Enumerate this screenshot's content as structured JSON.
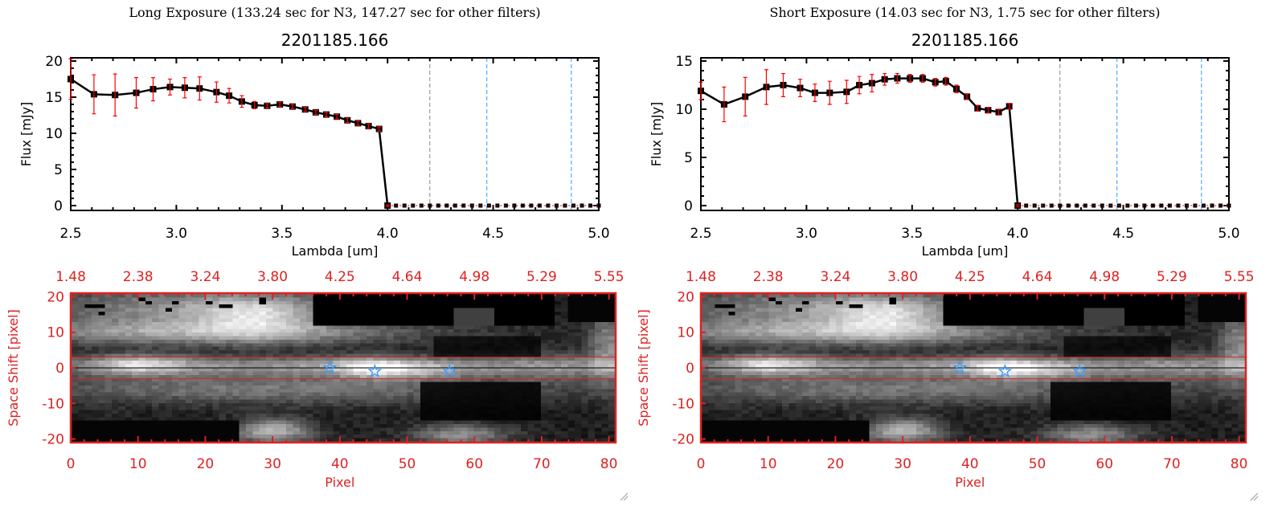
{
  "panels": [
    {
      "title": "Long Exposure (133.24 sec for N3, 147.27 sec for other filters)",
      "object_id": "2201185.166"
    },
    {
      "title": "Short Exposure (14.03 sec for N3, 1.75 sec for other filters)",
      "object_id": "2201185.166"
    }
  ],
  "chart_data": [
    {
      "type": "line",
      "title": "2201185.166",
      "xlabel": "Lambda [um]",
      "ylabel": "Flux [mJy]",
      "xlim": [
        2.5,
        5.0
      ],
      "ylim": [
        -0.67,
        20.44
      ],
      "xticks": [
        "2.5",
        "3.0",
        "3.5",
        "4.0",
        "4.5",
        "5.0"
      ],
      "yticks": [
        "0",
        "5",
        "10",
        "15",
        "20"
      ],
      "ytick_values": [
        0,
        5,
        10,
        15,
        20
      ],
      "x": [
        2.5,
        2.61,
        2.71,
        2.81,
        2.89,
        2.97,
        3.04,
        3.11,
        3.19,
        3.25,
        3.31,
        3.37,
        3.43,
        3.49,
        3.55,
        3.61,
        3.66,
        3.71,
        3.76,
        3.81,
        3.86,
        3.91,
        3.96,
        4.0
      ],
      "y": [
        17.5,
        15.4,
        15.3,
        15.6,
        16.1,
        16.4,
        16.3,
        16.2,
        15.7,
        15.2,
        14.4,
        13.9,
        13.8,
        14.0,
        13.7,
        13.3,
        12.9,
        12.6,
        12.3,
        11.8,
        11.4,
        11.0,
        10.6,
        0
      ],
      "yerr": [
        2.8,
        2.7,
        2.9,
        2.1,
        1.6,
        1.1,
        1.4,
        1.6,
        1.4,
        1.0,
        0.8,
        0.5,
        0.3,
        0.3,
        0.3,
        0.3,
        0.3,
        0.3,
        0.3,
        0.3,
        0.3,
        0.3,
        0.3,
        0.1
      ],
      "vlines": [
        {
          "x": 4.2,
          "color": "#888888"
        },
        {
          "x": 4.47,
          "color": "#3399ff"
        },
        {
          "x": 4.87,
          "color": "#3399ff"
        }
      ]
    },
    {
      "type": "line",
      "title": "2201185.166",
      "xlabel": "Lambda [um]",
      "ylabel": "Flux [mJy]",
      "xlim": [
        2.5,
        5.0
      ],
      "ylim": [
        -0.5,
        15.33
      ],
      "xticks": [
        "2.5",
        "3.0",
        "3.5",
        "4.0",
        "4.5",
        "5.0"
      ],
      "yticks": [
        "0",
        "5",
        "10",
        "15"
      ],
      "ytick_values": [
        0,
        5,
        10,
        15
      ],
      "x": [
        2.5,
        2.61,
        2.71,
        2.81,
        2.89,
        2.97,
        3.04,
        3.11,
        3.19,
        3.25,
        3.31,
        3.37,
        3.43,
        3.49,
        3.55,
        3.61,
        3.66,
        3.71,
        3.76,
        3.81,
        3.86,
        3.91,
        3.96,
        4.0
      ],
      "y": [
        11.9,
        10.5,
        11.3,
        12.3,
        12.5,
        12.2,
        11.7,
        11.7,
        11.8,
        12.5,
        12.7,
        13.1,
        13.2,
        13.2,
        13.2,
        12.8,
        12.9,
        12.1,
        11.3,
        10.1,
        9.9,
        9.7,
        10.3,
        0
      ],
      "yerr": [
        0.9,
        1.8,
        2.0,
        1.8,
        1.2,
        0.9,
        0.9,
        1.2,
        1.2,
        0.9,
        0.9,
        0.6,
        0.5,
        0.4,
        0.4,
        0.4,
        0.4,
        0.4,
        0.3,
        0.3,
        0.3,
        0.3,
        0.3,
        0.1
      ],
      "vlines": [
        {
          "x": 4.2,
          "color": "#888888"
        },
        {
          "x": 4.47,
          "color": "#3399ff"
        },
        {
          "x": 4.87,
          "color": "#3399ff"
        }
      ]
    },
    {
      "type": "heatmap",
      "xlabel": "Pixel",
      "ylabel": "Space Shift [pixel]",
      "xlim": [
        0,
        81
      ],
      "ylim": [
        -21,
        21
      ],
      "xticks": [
        "0",
        "10",
        "20",
        "30",
        "40",
        "50",
        "60",
        "70",
        "80"
      ],
      "xtick_values": [
        0,
        10,
        20,
        30,
        40,
        50,
        60,
        70,
        80
      ],
      "yticks": [
        "20",
        "10",
        "0",
        "-10",
        "-20"
      ],
      "ytick_values": [
        20,
        10,
        0,
        -10,
        -20
      ],
      "top_axis_ticks": [
        "1.48",
        "2.38",
        "3.24",
        "3.80",
        "4.25",
        "4.64",
        "4.98",
        "5.29",
        "5.55"
      ],
      "hlines": [
        {
          "y": 3,
          "color": "#dd2222"
        },
        {
          "y": -3,
          "color": "#dd2222"
        },
        {
          "y": 0,
          "color": "#000000"
        }
      ],
      "stars": [
        {
          "x": 38.5,
          "y": 0
        },
        {
          "x": 45.2,
          "y": -1
        },
        {
          "x": 56.3,
          "y": -1
        }
      ],
      "axis_color": "#dd2222",
      "star_color": "#3399ff"
    }
  ]
}
